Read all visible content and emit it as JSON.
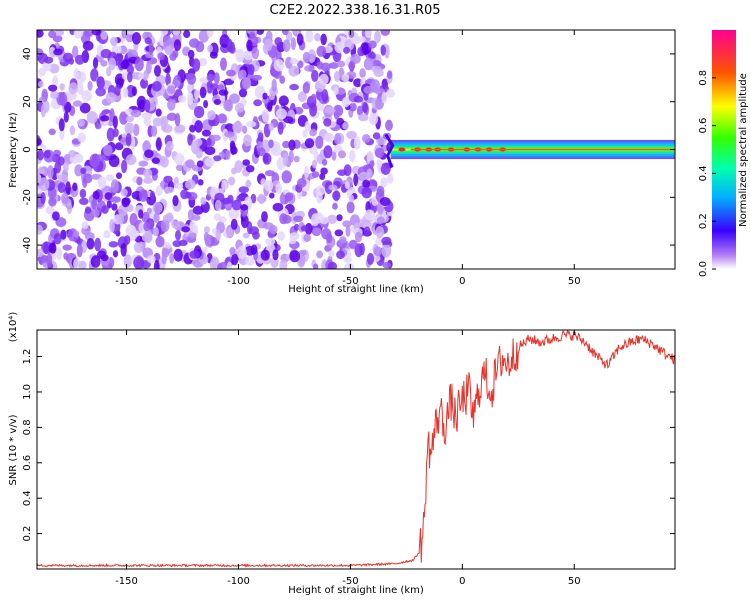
{
  "title": "C2E2.2022.338.16.31.R05",
  "chart_data": [
    {
      "type": "heatmap",
      "xlabel": "Height of straight line (km)",
      "ylabel": "Frequency (Hz)",
      "xlim": [
        -190,
        95
      ],
      "ylim": [
        -50,
        50
      ],
      "xticks": [
        -150,
        -100,
        -50,
        0,
        50
      ],
      "yticks": [
        -40,
        -20,
        0,
        20,
        40
      ],
      "noise_region_x": [
        -190,
        -32
      ],
      "signal_band": {
        "x_start": -32,
        "x_end": 95,
        "freq_center": 0,
        "freq_halfwidth": 4
      },
      "colorbar": {
        "label": "Normalized spectral amplitude",
        "ticks": [
          0.0,
          0.2,
          0.4,
          0.6,
          0.8
        ],
        "range": [
          0,
          1
        ]
      }
    },
    {
      "type": "line",
      "xlabel": "Height of straight line (km)",
      "ylabel": "SNR (10 * v/v)",
      "yscale_note": "(x10⁴)",
      "xlim": [
        -190,
        95
      ],
      "ylim": [
        0,
        1.35
      ],
      "xticks": [
        -150,
        -100,
        -50,
        0,
        50
      ],
      "yticks": [
        0.2,
        0.4,
        0.6,
        0.8,
        1.0,
        1.2
      ],
      "series": [
        {
          "color": "#e8332a",
          "x": [
            -190,
            -150,
            -100,
            -50,
            -30,
            -22,
            -19,
            -17,
            -16,
            -15,
            -14,
            -12,
            -10,
            -8,
            -5,
            -3,
            0,
            3,
            5,
            8,
            10,
            13,
            15,
            18,
            20,
            25,
            30,
            35,
            40,
            45,
            50,
            55,
            60,
            65,
            70,
            75,
            80,
            85,
            90,
            95
          ],
          "values": [
            0.02,
            0.02,
            0.02,
            0.02,
            0.03,
            0.05,
            0.1,
            0.25,
            0.6,
            0.7,
            0.65,
            0.8,
            0.9,
            0.8,
            0.95,
            0.85,
            0.95,
            1.0,
            0.85,
            1.05,
            1.1,
            1.0,
            1.1,
            1.2,
            1.15,
            1.25,
            1.3,
            1.28,
            1.3,
            1.32,
            1.32,
            1.28,
            1.2,
            1.15,
            1.25,
            1.28,
            1.3,
            1.27,
            1.22,
            1.18
          ]
        }
      ]
    }
  ]
}
